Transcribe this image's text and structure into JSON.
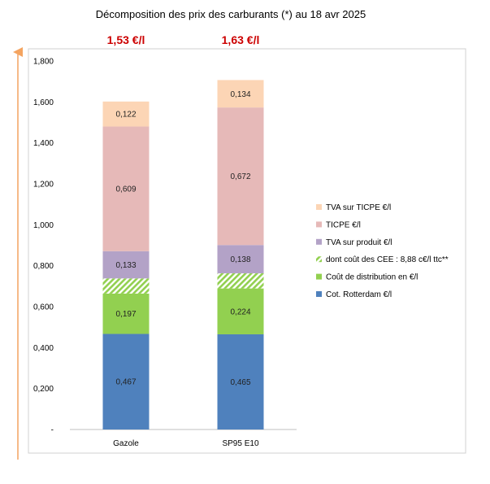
{
  "chart_data": {
    "type": "bar",
    "stacked": true,
    "title": "Décomposition des prix des carburants (*) au 18 avr 2025",
    "categories": [
      "Gazole",
      "SP95 E10"
    ],
    "totals": [
      "1,53 €/l",
      "1,63 €/l"
    ],
    "ylim": [
      0,
      1.8
    ],
    "yticks": [
      {
        "value": 0,
        "label": "-"
      },
      {
        "value": 0.2,
        "label": "0,200"
      },
      {
        "value": 0.4,
        "label": "0,400"
      },
      {
        "value": 0.6,
        "label": "0,600"
      },
      {
        "value": 0.8,
        "label": "0,800"
      },
      {
        "value": 1.0,
        "label": "1,000"
      },
      {
        "value": 1.2,
        "label": "1,200"
      },
      {
        "value": 1.4,
        "label": "1,400"
      },
      {
        "value": 1.6,
        "label": "1,600"
      },
      {
        "value": 1.8,
        "label": "1,800"
      }
    ],
    "grid": false,
    "legend_position": "right",
    "series": [
      {
        "name": "Cot. Rotterdam €/l",
        "color": "#4f81bd",
        "pattern": "solid",
        "values": [
          0.467,
          0.465
        ],
        "labels": [
          "0,467",
          "0,465"
        ]
      },
      {
        "name": "Coût de distribution en €/l",
        "color": "#92d050",
        "pattern": "solid",
        "values": [
          0.197,
          0.224
        ],
        "labels": [
          "0,197",
          "0,224"
        ]
      },
      {
        "name": "dont coût des CEE : 8,88 c€/l ttc**",
        "color": "#92d050",
        "pattern": "hatch",
        "values": [
          0.074,
          0.074
        ],
        "labels": [
          "",
          ""
        ]
      },
      {
        "name": "TVA sur produit €/l",
        "color": "#b3a2c7",
        "pattern": "solid",
        "values": [
          0.133,
          0.138
        ],
        "labels": [
          "0,133",
          "0,138"
        ]
      },
      {
        "name": "TICPE €/l",
        "color": "#e6b9b8",
        "pattern": "solid",
        "values": [
          0.609,
          0.672
        ],
        "labels": [
          "0,609",
          "0,672"
        ]
      },
      {
        "name": "TVA sur TICPE €/l",
        "color": "#fcd5b5",
        "pattern": "solid",
        "values": [
          0.122,
          0.134
        ],
        "labels": [
          "0,122",
          "0,134"
        ]
      }
    ],
    "legend_order": [
      5,
      4,
      3,
      2,
      1,
      0
    ]
  }
}
